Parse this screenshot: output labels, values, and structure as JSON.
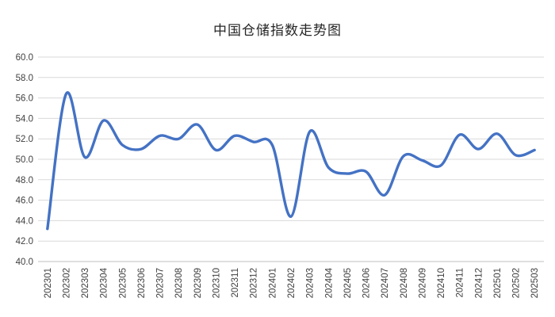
{
  "chart_data": {
    "type": "line",
    "title": "中国仓储指数走势图",
    "categories": [
      "202301",
      "202302",
      "202303",
      "202304",
      "202305",
      "202306",
      "202307",
      "202308",
      "202309",
      "202310",
      "202311",
      "202312",
      "202401",
      "202402",
      "202403",
      "202404",
      "202405",
      "202406",
      "202407",
      "202408",
      "202409",
      "202410",
      "202411",
      "202412",
      "202501",
      "202502",
      "202503"
    ],
    "series": [
      {
        "name": "中国仓储指数",
        "values": [
          43.2,
          56.4,
          50.2,
          53.8,
          51.4,
          51.0,
          52.3,
          52.0,
          53.4,
          50.9,
          52.3,
          51.7,
          51.4,
          44.4,
          52.7,
          49.2,
          48.6,
          48.8,
          46.5,
          50.3,
          49.9,
          49.4,
          52.4,
          51.0,
          52.5,
          50.4,
          50.9
        ]
      }
    ],
    "ylim": [
      40.0,
      60.0
    ],
    "ytick_step": 2.0,
    "ytick_decimals": 1,
    "grid": true,
    "legend": "none",
    "colors": {
      "line": "#4472C4",
      "grid": "#D9D9D9",
      "axis": "#BFBFBF",
      "tick_label": "#404040",
      "title": "#262626",
      "background": "#FFFFFF"
    }
  }
}
